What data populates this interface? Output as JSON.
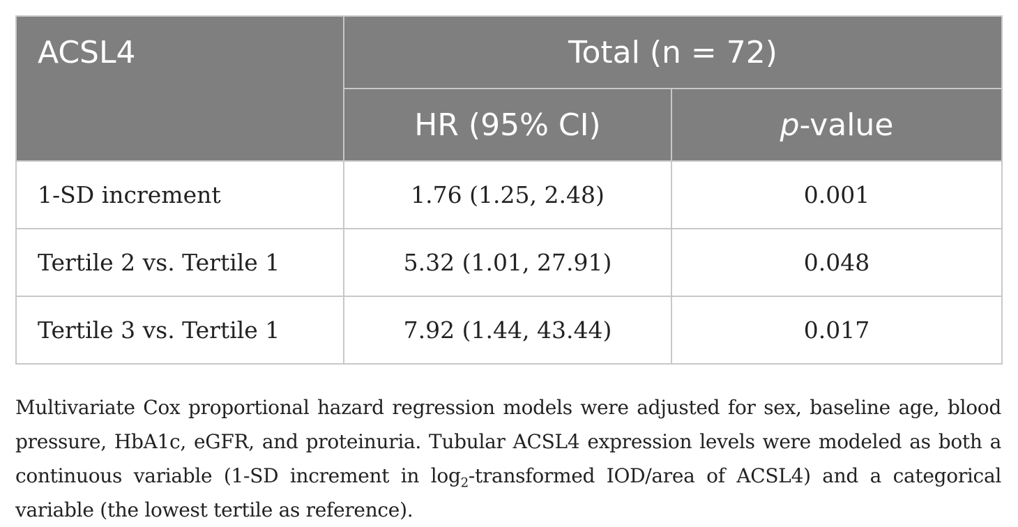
{
  "table": {
    "header": {
      "row_label": "ACSL4",
      "group_label": "Total (n = 72)",
      "col_hr": "HR (95% CI)",
      "col_p_prefix": "p",
      "col_p_suffix": "-value"
    },
    "rows": [
      {
        "label": "1-SD increment",
        "hr": "1.76 (1.25, 2.48)",
        "p": "0.001"
      },
      {
        "label": "Tertile 2 vs. Tertile 1",
        "hr": "5.32 (1.01, 27.91)",
        "p": "0.048"
      },
      {
        "label": "Tertile 3 vs. Tertile 1",
        "hr": "7.92 (1.44, 43.44)",
        "p": "0.017"
      }
    ]
  },
  "footnote": {
    "part1": "Multivariate Cox proportional hazard regression models were adjusted for sex, baseline age, blood pressure, HbA1c, eGFR, and proteinuria. Tubular ACSL4 expression levels were modeled as both a continuous variable (1-SD increment in log",
    "sub": "2",
    "part2": "-transformed IOD/area of ACSL4) and a categorical variable (the lowest tertile as reference)."
  }
}
